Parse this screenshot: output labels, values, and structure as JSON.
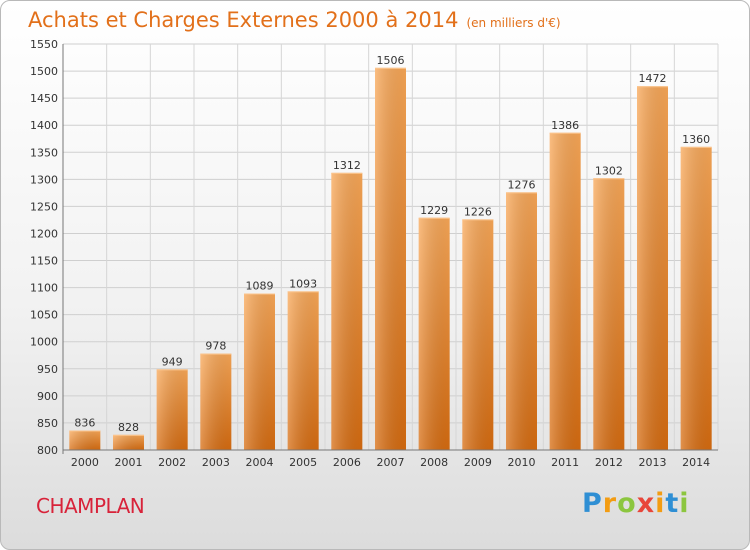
{
  "chart_data": {
    "type": "bar",
    "title": "Achats et Charges Externes 2000 à 2014",
    "subtitle": "(en milliers d'€)",
    "categories": [
      "2000",
      "2001",
      "2002",
      "2003",
      "2004",
      "2005",
      "2006",
      "2007",
      "2008",
      "2009",
      "2010",
      "2011",
      "2012",
      "2013",
      "2014"
    ],
    "values": [
      836,
      828,
      949,
      978,
      1089,
      1093,
      1312,
      1506,
      1229,
      1226,
      1276,
      1386,
      1302,
      1472,
      1360
    ],
    "ylim": [
      800,
      1550
    ],
    "yticks": [
      800,
      850,
      900,
      950,
      1000,
      1050,
      1100,
      1150,
      1200,
      1250,
      1300,
      1350,
      1400,
      1450,
      1500,
      1550
    ],
    "grid": true,
    "bar_color": "#f0862b"
  },
  "commune": "CHAMPLAN",
  "logo": {
    "letters": [
      "P",
      "r",
      "o",
      "x",
      "i",
      "t",
      "i"
    ],
    "colors": [
      "#2f8fd4",
      "#f39c12",
      "#8cc63f",
      "#e8463a",
      "#f39c12",
      "#2f8fd4",
      "#8cc63f"
    ]
  }
}
